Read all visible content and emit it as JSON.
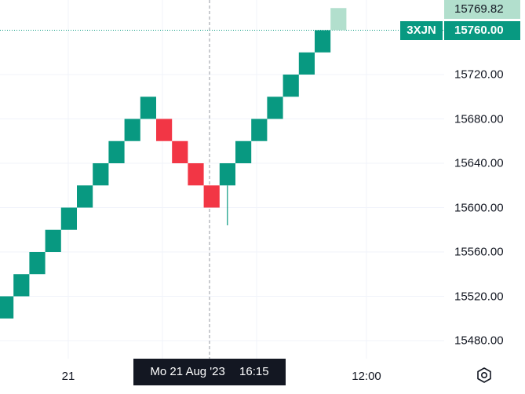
{
  "chart_data": {
    "type": "renko",
    "box_size": 20,
    "y_ticks": [
      "15720.00",
      "15680.00",
      "15640.00",
      "15600.00",
      "15560.00",
      "15520.00",
      "15480.00"
    ],
    "x_ticks": [
      "21",
      "12:00"
    ],
    "bricks": [
      {
        "low": 15500,
        "high": 15520,
        "dir": "up"
      },
      {
        "low": 15520,
        "high": 15540,
        "dir": "up"
      },
      {
        "low": 15540,
        "high": 15560,
        "dir": "up"
      },
      {
        "low": 15560,
        "high": 15580,
        "dir": "up"
      },
      {
        "low": 15580,
        "high": 15600,
        "dir": "up"
      },
      {
        "low": 15600,
        "high": 15620,
        "dir": "up"
      },
      {
        "low": 15620,
        "high": 15640,
        "dir": "up"
      },
      {
        "low": 15640,
        "high": 15660,
        "dir": "up"
      },
      {
        "low": 15660,
        "high": 15680,
        "dir": "up"
      },
      {
        "low": 15680,
        "high": 15700,
        "dir": "up"
      },
      {
        "low": 15660,
        "high": 15680,
        "dir": "down"
      },
      {
        "low": 15640,
        "high": 15660,
        "dir": "down"
      },
      {
        "low": 15620,
        "high": 15640,
        "dir": "down"
      },
      {
        "low": 15600,
        "high": 15620,
        "dir": "down"
      },
      {
        "low": 15620,
        "high": 15640,
        "dir": "up",
        "wick_low": 15584
      },
      {
        "low": 15640,
        "high": 15660,
        "dir": "up"
      },
      {
        "low": 15660,
        "high": 15680,
        "dir": "up"
      },
      {
        "low": 15680,
        "high": 15700,
        "dir": "up"
      },
      {
        "low": 15700,
        "high": 15720,
        "dir": "up"
      },
      {
        "low": 15720,
        "high": 15740,
        "dir": "up"
      },
      {
        "low": 15740,
        "high": 15760,
        "dir": "up"
      },
      {
        "low": 15760,
        "high": 15780,
        "dir": "up",
        "projected": true
      }
    ],
    "colors": {
      "up": "#089981",
      "down": "#f23645",
      "projected": "#b2dfcd"
    }
  },
  "price_axis": {
    "last_price": "15769.82",
    "current_price": "15760.00",
    "symbol": "3XJN"
  },
  "crosshair": {
    "date": "Mo 21 Aug '23",
    "time": "16:15"
  },
  "icons": {
    "settings": "settings-hexagon-icon"
  }
}
